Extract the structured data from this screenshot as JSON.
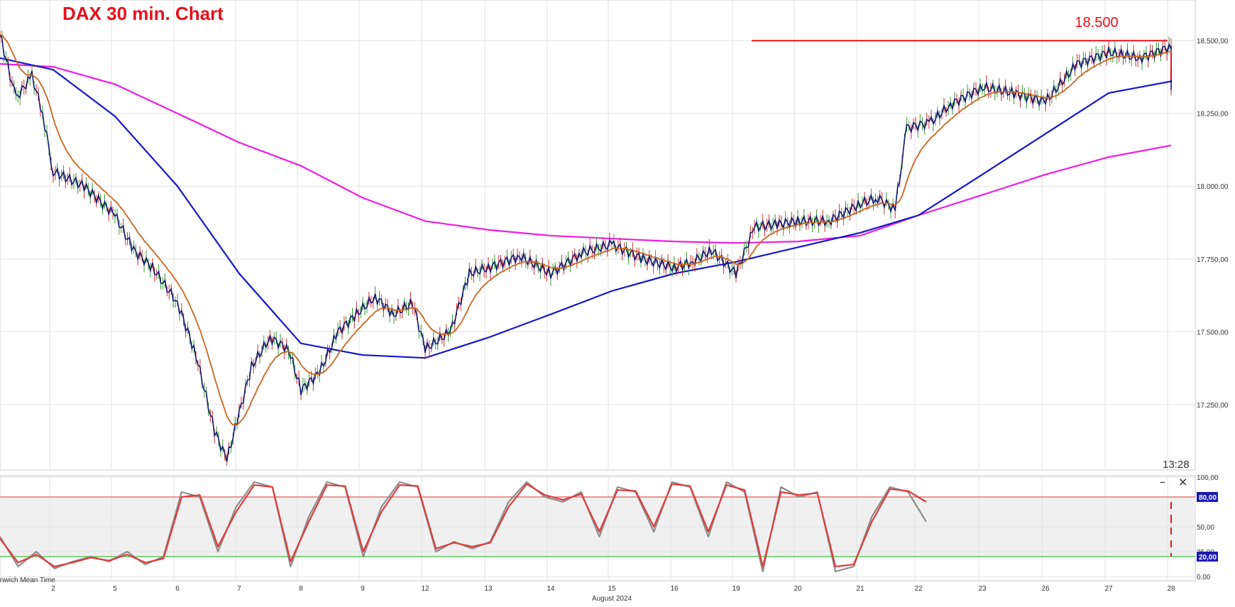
{
  "title": "DAX 30 min. Chart",
  "time_label": "13:28",
  "gmt_label": "nwich Mean Time",
  "month_label": "August 2024",
  "window_controls": {
    "minimize": "–",
    "close": "×"
  },
  "colors": {
    "price_candles": "#14186e",
    "ema_fast": "#c8661e",
    "ma_blue": "#1616c8",
    "ma_magenta": "#ee1ee0",
    "resistance": "#e8101a",
    "stoch_k": "#8c8c8c",
    "stoch_d": "#e03c3c",
    "stoch_upper": "#e05a5a",
    "stoch_lower": "#36c236",
    "projection": "#e8101a",
    "grid": "#e2e2e2"
  },
  "chart_data": [
    {
      "type": "candlestick",
      "title": "DAX 30 min. Chart",
      "x_ticks": [
        "2",
        "5",
        "6",
        "7",
        "8",
        "9",
        "12",
        "13",
        "14",
        "15",
        "16",
        "19",
        "20",
        "21",
        "22",
        "23",
        "26",
        "27",
        "28"
      ],
      "x_label": "August 2024",
      "y_ticks": [
        "17.250,00",
        "17.500,00",
        "17.750,00",
        "18.000,00",
        "18.250,00",
        "18.500,00"
      ],
      "ylim": [
        17030,
        18620
      ],
      "grid": true,
      "price_path": [
        [
          "1",
          18520
        ],
        [
          "1.3",
          18300
        ],
        [
          "1.6",
          18380
        ],
        [
          "1.8",
          18250
        ],
        [
          "2",
          18050
        ],
        [
          "2.5",
          18000
        ],
        [
          "3",
          17900
        ],
        [
          "3.3",
          17780
        ],
        [
          "3.6",
          17720
        ],
        [
          "4",
          17600
        ],
        [
          "4.3",
          17420
        ],
        [
          "4.6",
          17160
        ],
        [
          "4.8",
          17060
        ],
        [
          "5",
          17220
        ],
        [
          "5.2",
          17380
        ],
        [
          "5.5",
          17480
        ],
        [
          "5.8",
          17440
        ],
        [
          "6",
          17300
        ],
        [
          "6.3",
          17360
        ],
        [
          "6.6",
          17500
        ],
        [
          "6.9",
          17560
        ],
        [
          "7.2",
          17620
        ],
        [
          "7.5",
          17560
        ],
        [
          "7.8",
          17600
        ],
        [
          "8",
          17440
        ],
        [
          "8.4",
          17500
        ],
        [
          "8.7",
          17700
        ],
        [
          "9",
          17720
        ],
        [
          "9.5",
          17760
        ],
        [
          "10",
          17700
        ],
        [
          "10.5",
          17770
        ],
        [
          "11",
          17800
        ],
        [
          "11.5",
          17750
        ],
        [
          "12",
          17720
        ],
        [
          "12.3",
          17740
        ],
        [
          "12.6",
          17780
        ],
        [
          "13",
          17700
        ],
        [
          "13.3",
          17860
        ],
        [
          "13.7",
          17870
        ],
        [
          "14",
          17880
        ],
        [
          "14.5",
          17880
        ],
        [
          "15",
          17940
        ],
        [
          "15.3",
          17960
        ],
        [
          "15.6",
          17920
        ],
        [
          "15.8",
          18200
        ],
        [
          "16.2",
          18220
        ],
        [
          "16.5",
          18280
        ],
        [
          "17",
          18340
        ],
        [
          "17.5",
          18320
        ],
        [
          "18",
          18290
        ],
        [
          "18.5",
          18420
        ],
        [
          "19",
          18460
        ],
        [
          "19.5",
          18440
        ],
        [
          "20",
          18480
        ],
        [
          "20.4",
          18400
        ],
        [
          "20.7",
          18340
        ],
        [
          "21",
          18360
        ],
        [
          "21.5",
          18380
        ],
        [
          "22",
          18470
        ],
        [
          "22.5",
          18460
        ],
        [
          "23",
          18440
        ]
      ],
      "moving_averages": [
        {
          "name": "",
          "color": "#c8661e",
          "period_label": ""
        },
        {
          "name": "",
          "color": "#1616c8",
          "period_label": "",
          "points": [
            [
              "1",
              18440
            ],
            [
              "2",
              18400
            ],
            [
              "3",
              18240
            ],
            [
              "4",
              18000
            ],
            [
              "5",
              17700
            ],
            [
              "6",
              17460
            ],
            [
              "7",
              17420
            ],
            [
              "8",
              17410
            ],
            [
              "9",
              17480
            ],
            [
              "10",
              17560
            ],
            [
              "11",
              17640
            ],
            [
              "12",
              17700
            ],
            [
              "13",
              17740
            ],
            [
              "14",
              17790
            ],
            [
              "15",
              17840
            ],
            [
              "16",
              17900
            ],
            [
              "17",
              18040
            ],
            [
              "18",
              18180
            ],
            [
              "19",
              18320
            ],
            [
              "20",
              18360
            ],
            [
              "21",
              18380
            ],
            [
              "22",
              18400
            ]
          ]
        },
        {
          "name": "",
          "color": "#ee1ee0",
          "period_label": "",
          "points": [
            [
              "1",
              18420
            ],
            [
              "2",
              18410
            ],
            [
              "3",
              18350
            ],
            [
              "4",
              18250
            ],
            [
              "5",
              18150
            ],
            [
              "6",
              18070
            ],
            [
              "7",
              17960
            ],
            [
              "8",
              17880
            ],
            [
              "9",
              17850
            ],
            [
              "10",
              17830
            ],
            [
              "11",
              17820
            ],
            [
              "12",
              17810
            ],
            [
              "13",
              17805
            ],
            [
              "14",
              17810
            ],
            [
              "15",
              17830
            ],
            [
              "16",
              17900
            ],
            [
              "17",
              17970
            ],
            [
              "18",
              18040
            ],
            [
              "19",
              18100
            ],
            [
              "20",
              18140
            ]
          ]
        }
      ],
      "resistance": {
        "value": 18500,
        "label": "18.500",
        "from": "19",
        "to": "28"
      },
      "projection": [
        [
          "22",
          18450
        ],
        [
          "22.5",
          18380
        ],
        [
          "23",
          18460
        ],
        [
          "23.5",
          18360
        ]
      ]
    },
    {
      "type": "line",
      "title": "",
      "x_ticks": [
        "2",
        "5",
        "6",
        "7",
        "8",
        "9",
        "12",
        "13",
        "14",
        "15",
        "16",
        "19",
        "20",
        "21",
        "22",
        "23",
        "26",
        "27",
        "28"
      ],
      "y_ticks": [
        "100,00",
        "50,00",
        "25,00",
        "0,00"
      ],
      "ylim": [
        0,
        100
      ],
      "levels": [
        {
          "value": 80,
          "label": "80,00",
          "color": "#e05a5a"
        },
        {
          "value": 20,
          "label": "20,00",
          "color": "#36c236"
        }
      ],
      "series": [
        {
          "name": "",
          "color": "#8c8c8c",
          "values": [
            40,
            10,
            25,
            8,
            15,
            20,
            15,
            25,
            12,
            20,
            85,
            80,
            25,
            70,
            95,
            90,
            10,
            60,
            95,
            90,
            20,
            70,
            95,
            90,
            25,
            35,
            28,
            35,
            75,
            95,
            80,
            75,
            85,
            40,
            90,
            85,
            45,
            95,
            90,
            40,
            95,
            85,
            5,
            90,
            80,
            85,
            5,
            10,
            60,
            90,
            85,
            55
          ]
        },
        {
          "name": "",
          "color": "#e03c3c",
          "values": [
            38,
            14,
            22,
            10,
            14,
            19,
            16,
            22,
            14,
            18,
            80,
            82,
            30,
            65,
            92,
            90,
            15,
            55,
            92,
            91,
            25,
            65,
            92,
            91,
            28,
            34,
            30,
            34,
            70,
            93,
            82,
            77,
            83,
            45,
            87,
            86,
            50,
            93,
            91,
            45,
            92,
            87,
            10,
            85,
            82,
            84,
            10,
            12,
            55,
            88,
            86,
            75
          ]
        }
      ],
      "projection": [
        [
          "22",
          75
        ],
        [
          "22.5",
          20
        ],
        [
          "23",
          58
        ],
        [
          "23.5",
          50
        ]
      ]
    }
  ]
}
